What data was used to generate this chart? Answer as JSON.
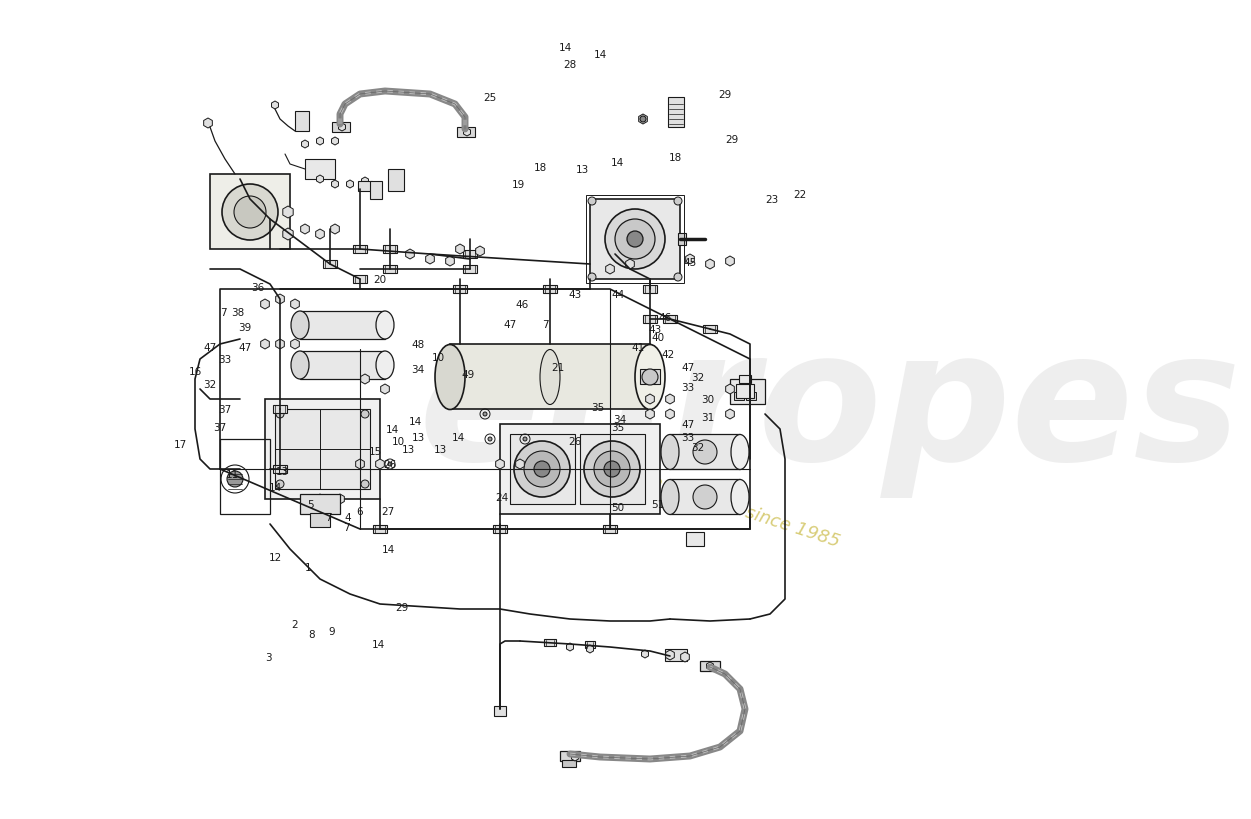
{
  "bg_color": "#ffffff",
  "line_color": "#1a1a1a",
  "lw_main": 1.2,
  "lw_thin": 0.8,
  "watermark1": "europes",
  "watermark2": "a passion for parts since 1985",
  "fig_width": 11.0,
  "fig_height": 8.0
}
